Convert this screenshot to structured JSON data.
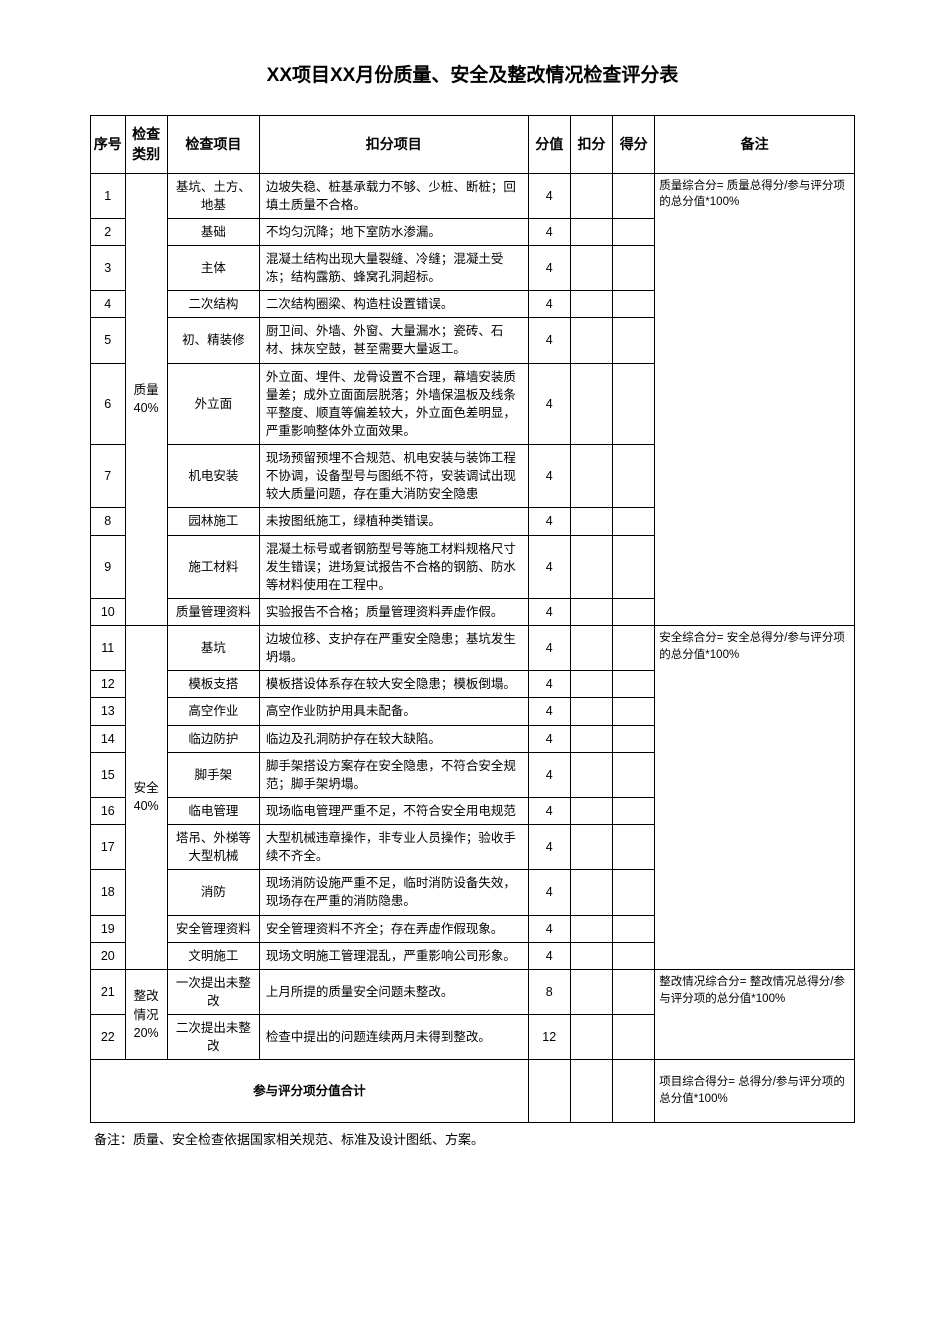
{
  "title": "XX项目XX月份质量、安全及整改情况检查评分表",
  "headers": {
    "seq": "序号",
    "category": "检查类别",
    "item": "检查项目",
    "desc": "扣分项目",
    "score": "分值",
    "deduct": "扣分",
    "got": "得分",
    "remark": "备注"
  },
  "groups": [
    {
      "category": "质量40%",
      "remark": "质量综合分=\n质量总得分/参与评分项的总分值*100%",
      "rows": [
        {
          "seq": "1",
          "item": "基坑、土方、地基",
          "desc": "边坡失稳、桩基承载力不够、少桩、断桩；回填土质量不合格。",
          "score": "4"
        },
        {
          "seq": "2",
          "item": "基础",
          "desc": "不均匀沉降；地下室防水渗漏。",
          "score": "4"
        },
        {
          "seq": "3",
          "item": "主体",
          "desc": "混凝土结构出现大量裂缝、冷缝；混凝土受冻；结构露筋、蜂窝孔洞超标。",
          "score": "4"
        },
        {
          "seq": "4",
          "item": "二次结构",
          "desc": "二次结构圈梁、构造柱设置错误。",
          "score": "4"
        },
        {
          "seq": "5",
          "item": "初、精装修",
          "desc": "厨卫间、外墙、外窗、大量漏水；瓷砖、石材、抹灰空鼓，甚至需要大量返工。",
          "score": "4"
        },
        {
          "seq": "6",
          "item": "外立面",
          "desc": "外立面、埋件、龙骨设置不合理，幕墙安装质量差；成外立面面层脱落；外墙保温板及线条平整度、顺直等偏差较大，外立面色差明显，严重影响整体外立面效果。",
          "score": "4"
        },
        {
          "seq": "7",
          "item": "机电安装",
          "desc": "现场预留预埋不合规范、机电安装与装饰工程不协调，设备型号与图纸不符，安装调试出现较大质量问题，存在重大消防安全隐患",
          "score": "4"
        },
        {
          "seq": "8",
          "item": "园林施工",
          "desc": "未按图纸施工，绿植种类错误。",
          "score": "4"
        },
        {
          "seq": "9",
          "item": "施工材料",
          "desc": "混凝土标号或者钢筋型号等施工材料规格尺寸发生错误；进场复试报告不合格的钢筋、防水等材料使用在工程中。",
          "score": "4"
        },
        {
          "seq": "10",
          "item": "质量管理资料",
          "desc": "实验报告不合格；质量管理资料弄虚作假。",
          "score": "4"
        }
      ]
    },
    {
      "category": "安全40%",
      "remark": "安全综合分=\n安全总得分/参与评分项的总分值*100%",
      "rows": [
        {
          "seq": "11",
          "item": "基坑",
          "desc": "边坡位移、支护存在严重安全隐患；基坑发生坍塌。",
          "score": "4"
        },
        {
          "seq": "12",
          "item": "模板支搭",
          "desc": "模板搭设体系存在较大安全隐患；模板倒塌。",
          "score": "4"
        },
        {
          "seq": "13",
          "item": "高空作业",
          "desc": "高空作业防护用具未配备。",
          "score": "4"
        },
        {
          "seq": "14",
          "item": "临边防护",
          "desc": "临边及孔洞防护存在较大缺陷。",
          "score": "4"
        },
        {
          "seq": "15",
          "item": "脚手架",
          "desc": "脚手架搭设方案存在安全隐患，不符合安全规范；脚手架坍塌。",
          "score": "4"
        },
        {
          "seq": "16",
          "item": "临电管理",
          "desc": "现场临电管理严重不足，不符合安全用电规范",
          "score": "4"
        },
        {
          "seq": "17",
          "item": "塔吊、外梯等大型机械",
          "desc": "大型机械违章操作，非专业人员操作；验收手续不齐全。",
          "score": "4"
        },
        {
          "seq": "18",
          "item": "消防",
          "desc": "现场消防设施严重不足，临时消防设备失效，现场存在严重的消防隐患。",
          "score": "4"
        },
        {
          "seq": "19",
          "item": "安全管理资料",
          "desc": "安全管理资料不齐全；存在弄虚作假现象。",
          "score": "4"
        },
        {
          "seq": "20",
          "item": "文明施工",
          "desc": "现场文明施工管理混乱，严重影响公司形象。",
          "score": "4"
        }
      ]
    },
    {
      "category": "整改情况20%",
      "remark": "整改情况综合分=\n整改情况总得分/参与评分项的总分值*100%",
      "rows": [
        {
          "seq": "21",
          "item": "一次提出未整改",
          "desc": "上月所提的质量安全问题未整改。",
          "score": "8"
        },
        {
          "seq": "22",
          "item": "二次提出未整改",
          "desc": "检查中提出的问题连续两月未得到整改。",
          "score": "12"
        }
      ]
    }
  ],
  "total": {
    "label": "参与评分项分值合计",
    "remark": "项目综合得分=\n总得分/参与评分项的总分值*100%"
  },
  "footnote": "备注：质量、安全检查依据国家相关规范、标准及设计图纸、方案。"
}
